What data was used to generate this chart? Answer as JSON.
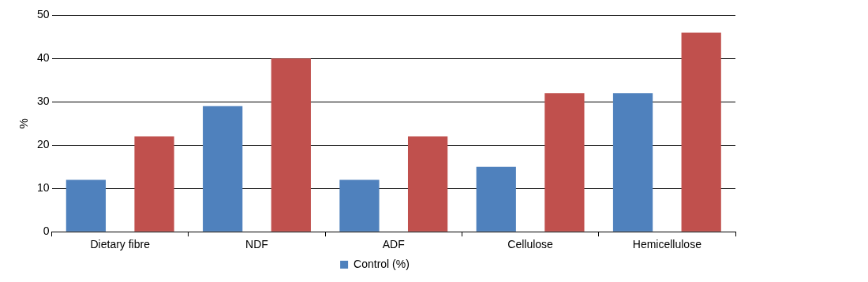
{
  "chart_data": {
    "type": "bar",
    "ylabel": "%",
    "categories": [
      "Dietary fibre",
      "NDF",
      "ADF",
      "Cellulose",
      "Hemicellulose"
    ],
    "series": [
      {
        "name": "Control (%)",
        "color": "#4f81bd",
        "values": [
          12,
          29,
          12,
          15,
          32
        ]
      },
      {
        "color": "#c0504d",
        "values": [
          22,
          40,
          22,
          32,
          46
        ]
      }
    ],
    "ylim": [
      0,
      50
    ],
    "yticks": [
      0,
      10,
      20,
      30,
      40,
      50
    ],
    "grid": "y",
    "legend": "bottom"
  }
}
